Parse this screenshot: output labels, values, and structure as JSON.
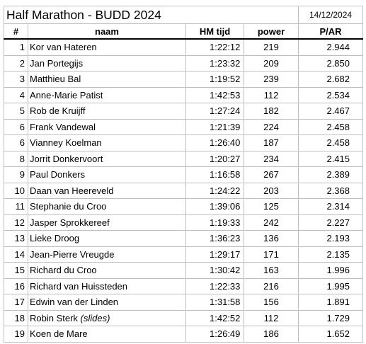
{
  "title": "Half Marathon - BUDD 2024",
  "date": "14/12/2024",
  "headers": {
    "num": "#",
    "name": "naam",
    "time": "HM tijd",
    "power": "power",
    "par": "P/AR"
  },
  "rows": [
    {
      "num": "1",
      "name": "Kor van Hateren",
      "note": "",
      "time": "1:22:12",
      "power": "219",
      "par": "2.944"
    },
    {
      "num": "2",
      "name": "Jan Portegijs",
      "note": "",
      "time": "1:23:32",
      "power": "209",
      "par": "2.850"
    },
    {
      "num": "3",
      "name": "Matthieu Bal",
      "note": "",
      "time": "1:19:52",
      "power": "239",
      "par": "2.682"
    },
    {
      "num": "4",
      "name": "Anne-Marie Patist",
      "note": "",
      "time": "1:42:53",
      "power": "112",
      "par": "2.534"
    },
    {
      "num": "5",
      "name": "Rob de Kruijff",
      "note": "",
      "time": "1:27:24",
      "power": "182",
      "par": "2.467"
    },
    {
      "num": "6",
      "name": "Frank Vandewal",
      "note": "",
      "time": "1:21:39",
      "power": "224",
      "par": "2.458"
    },
    {
      "num": "6",
      "name": "Vianney Koelman",
      "note": "",
      "time": "1:26:40",
      "power": "187",
      "par": "2.458"
    },
    {
      "num": "8",
      "name": "Jorrit Donkervoort",
      "note": "",
      "time": "1:20:27",
      "power": "234",
      "par": "2.415"
    },
    {
      "num": "9",
      "name": "Paul Donkers",
      "note": "",
      "time": "1:16:58",
      "power": "267",
      "par": "2.389"
    },
    {
      "num": "10",
      "name": "Daan van Heereveld",
      "note": "",
      "time": "1:24:22",
      "power": "203",
      "par": "2.368"
    },
    {
      "num": "11",
      "name": "Stephanie du Croo",
      "note": "",
      "time": "1:39:06",
      "power": "125",
      "par": "2.314"
    },
    {
      "num": "12",
      "name": "Jasper Sprokkereef",
      "note": "",
      "time": "1:19:33",
      "power": "242",
      "par": "2.227"
    },
    {
      "num": "13",
      "name": "Lieke Droog",
      "note": "",
      "time": "1:36:23",
      "power": "136",
      "par": "2.193"
    },
    {
      "num": "14",
      "name": "Jean-Pierre Vreugde",
      "note": "",
      "time": "1:29:17",
      "power": "171",
      "par": "2.135"
    },
    {
      "num": "15",
      "name": "Richard du Croo",
      "note": "",
      "time": "1:30:42",
      "power": "163",
      "par": "1.996"
    },
    {
      "num": "16",
      "name": "Richard van Huissteden",
      "note": "",
      "time": "1:22:33",
      "power": "216",
      "par": "1.995"
    },
    {
      "num": "17",
      "name": "Edwin van der Linden",
      "note": "",
      "time": "1:31:58",
      "power": "156",
      "par": "1.891"
    },
    {
      "num": "18",
      "name": "Robin Sterk",
      "note": "(slides)",
      "time": "1:42:52",
      "power": "112",
      "par": "1.729"
    },
    {
      "num": "19",
      "name": "Koen de Mare",
      "note": "",
      "time": "1:26:49",
      "power": "186",
      "par": "1.652"
    }
  ]
}
